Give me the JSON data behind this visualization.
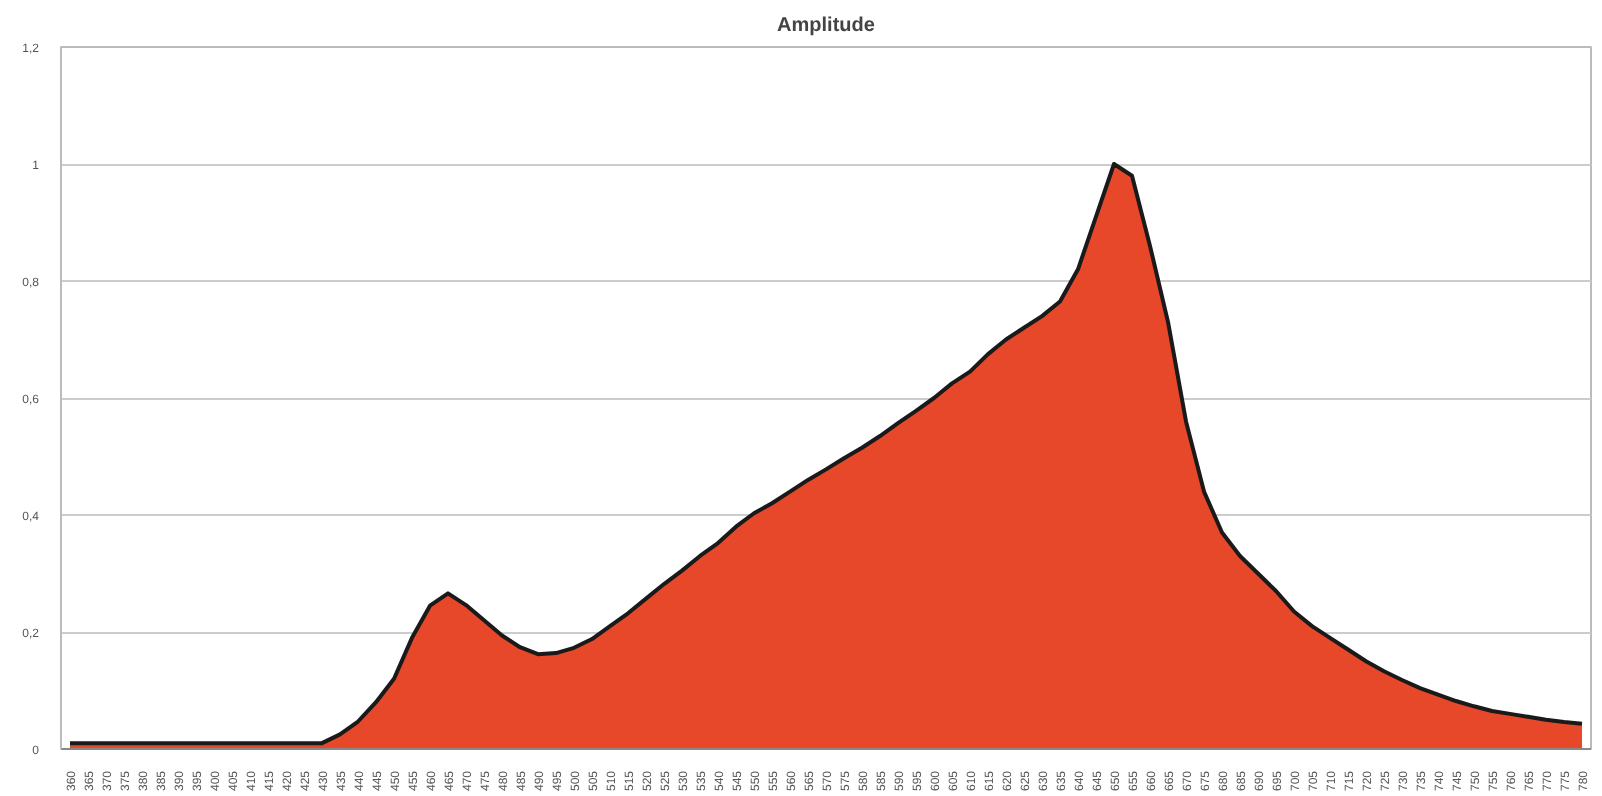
{
  "chart_data": {
    "type": "area",
    "title": "Amplitude",
    "categories": [
      "360",
      "365",
      "370",
      "375",
      "380",
      "385",
      "390",
      "395",
      "400",
      "405",
      "410",
      "415",
      "420",
      "425",
      "430",
      "435",
      "440",
      "445",
      "450",
      "455",
      "460",
      "465",
      "470",
      "475",
      "480",
      "485",
      "490",
      "495",
      "500",
      "505",
      "510",
      "515",
      "520",
      "525",
      "530",
      "535",
      "540",
      "545",
      "550",
      "555",
      "560",
      "565",
      "570",
      "575",
      "580",
      "585",
      "590",
      "595",
      "600",
      "605",
      "610",
      "615",
      "620",
      "625",
      "630",
      "635",
      "640",
      "645",
      "650",
      "655",
      "660",
      "665",
      "670",
      "675",
      "680",
      "685",
      "690",
      "695",
      "700",
      "705",
      "710",
      "715",
      "720",
      "725",
      "730",
      "735",
      "740",
      "745",
      "750",
      "755",
      "760",
      "765",
      "770",
      "775",
      "780"
    ],
    "series": [
      {
        "color": "#e8482a",
        "values": [
          0.01,
          0.01,
          0.01,
          0.01,
          0.01,
          0.01,
          0.01,
          0.01,
          0.01,
          0.01,
          0.01,
          0.01,
          0.01,
          0.01,
          0.01,
          0.025,
          0.047,
          0.08,
          0.12,
          0.19,
          0.245,
          0.266,
          0.246,
          0.22,
          0.194,
          0.174,
          0.162,
          0.164,
          0.173,
          0.188,
          0.21,
          0.232,
          0.257,
          0.282,
          0.305,
          0.33,
          0.352,
          0.38,
          0.403,
          0.42,
          0.44,
          0.46,
          0.478,
          0.497,
          0.515,
          0.535,
          0.557,
          0.578,
          0.6,
          0.625,
          0.645,
          0.675,
          0.7,
          0.72,
          0.74,
          0.765,
          0.82,
          0.91,
          1.0,
          0.98,
          0.86,
          0.73,
          0.56,
          0.44,
          0.37,
          0.33,
          0.3,
          0.27,
          0.235,
          0.21,
          0.19,
          0.17,
          0.15,
          0.133,
          0.118,
          0.104,
          0.093,
          0.082,
          0.073,
          0.065,
          0.06,
          0.055,
          0.05,
          0.046,
          0.043
        ]
      }
    ],
    "ylim": [
      0,
      1.2
    ],
    "yticks": [
      0,
      {
        "value": 0.2,
        "label": "0,2"
      },
      {
        "value": 0.4,
        "label": "0,4"
      },
      {
        "value": 0.6,
        "label": "0,6"
      },
      {
        "value": 0.8,
        "label": "0,8"
      },
      1,
      {
        "value": 1.2,
        "label": "1,2"
      }
    ],
    "grid": "y"
  }
}
